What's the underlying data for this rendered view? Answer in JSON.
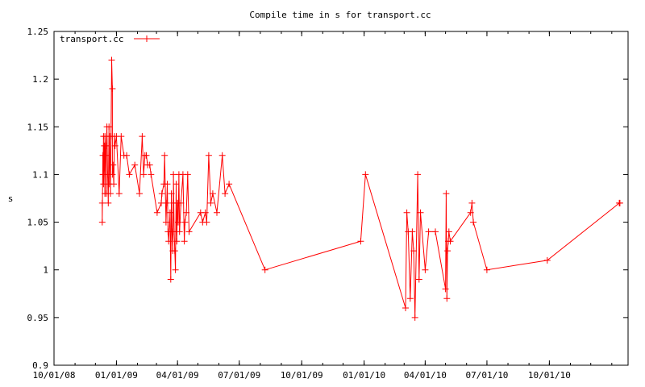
{
  "chart_data": {
    "type": "line",
    "title": "Compile time in s for transport.cc",
    "xlabel": "",
    "ylabel": "s",
    "ylim": [
      0.9,
      1.25
    ],
    "yticks": [
      0.9,
      0.95,
      1.0,
      1.05,
      1.1,
      1.15,
      1.2,
      1.25
    ],
    "ytick_labels": [
      "0.9",
      "0.95",
      "1",
      "1.05",
      "1.1",
      "1.15",
      "1.2",
      "1.25"
    ],
    "xlim": [
      "2008-10-01",
      "2011-01-25"
    ],
    "xticks": [
      "2008-10-01",
      "2009-01-01",
      "2009-04-01",
      "2009-07-01",
      "2009-10-01",
      "2010-01-01",
      "2010-04-01",
      "2010-07-01",
      "2010-10-01"
    ],
    "xtick_labels": [
      "10/01/08",
      "01/01/09",
      "04/01/09",
      "07/01/09",
      "10/01/09",
      "01/01/10",
      "04/01/10",
      "07/01/10",
      "10/01/10"
    ],
    "grid": false,
    "legend_position": "top-left",
    "colors": {
      "series": "#ff0000",
      "axes": "#000000",
      "background": "#ffffff"
    },
    "series": [
      {
        "name": "transport.cc",
        "x": [
          "2008-12-11",
          "2008-12-11",
          "2008-12-12",
          "2008-12-12",
          "2008-12-13",
          "2008-12-13",
          "2008-12-14",
          "2008-12-15",
          "2008-12-15",
          "2008-12-16",
          "2008-12-17",
          "2008-12-17",
          "2008-12-18",
          "2008-12-19",
          "2008-12-20",
          "2008-12-21",
          "2008-12-21",
          "2008-12-22",
          "2008-12-23",
          "2008-12-24",
          "2008-12-25",
          "2008-12-26",
          "2008-12-26",
          "2008-12-27",
          "2008-12-28",
          "2008-12-29",
          "2008-12-30",
          "2009-01-01",
          "2009-01-05",
          "2009-01-08",
          "2009-01-12",
          "2009-01-16",
          "2009-01-20",
          "2009-01-28",
          "2009-02-04",
          "2009-02-08",
          "2009-02-10",
          "2009-02-12",
          "2009-02-14",
          "2009-02-16",
          "2009-02-19",
          "2009-02-21",
          "2009-03-02",
          "2009-03-08",
          "2009-03-09",
          "2009-03-12",
          "2009-03-13",
          "2009-03-15",
          "2009-03-16",
          "2009-03-17",
          "2009-03-18",
          "2009-03-19",
          "2009-03-21",
          "2009-03-22",
          "2009-03-23",
          "2009-03-24",
          "2009-03-25",
          "2009-03-26",
          "2009-03-26",
          "2009-03-27",
          "2009-03-28",
          "2009-03-29",
          "2009-03-30",
          "2009-03-31",
          "2009-04-01",
          "2009-04-02",
          "2009-04-03",
          "2009-04-04",
          "2009-04-06",
          "2009-04-09",
          "2009-04-11",
          "2009-04-12",
          "2009-04-14",
          "2009-04-16",
          "2009-04-18",
          "2009-05-05",
          "2009-05-08",
          "2009-05-12",
          "2009-05-14",
          "2009-05-17",
          "2009-05-20",
          "2009-05-23",
          "2009-05-29",
          "2009-06-06",
          "2009-06-10",
          "2009-06-16",
          "2009-08-08",
          "2009-12-27",
          "2010-01-03",
          "2010-03-03",
          "2010-03-05",
          "2010-03-07",
          "2010-03-10",
          "2010-03-13",
          "2010-03-15",
          "2010-03-17",
          "2010-03-21",
          "2010-03-23",
          "2010-03-25",
          "2010-04-01",
          "2010-04-06",
          "2010-04-16",
          "2010-05-01",
          "2010-05-02",
          "2010-05-03",
          "2010-05-04",
          "2010-05-05",
          "2010-05-06",
          "2010-05-08",
          "2010-06-07",
          "2010-06-09",
          "2010-06-11",
          "2010-07-01",
          "2010-09-28",
          "2011-01-12",
          "2011-01-13"
        ],
        "y": [
          1.07,
          1.05,
          1.12,
          1.1,
          1.14,
          1.09,
          1.13,
          1.08,
          1.14,
          1.12,
          1.08,
          1.13,
          1.15,
          1.1,
          1.07,
          1.15,
          1.09,
          1.14,
          1.08,
          1.14,
          1.22,
          1.19,
          1.1,
          1.11,
          1.09,
          1.14,
          1.13,
          1.14,
          1.08,
          1.14,
          1.12,
          1.12,
          1.1,
          1.11,
          1.08,
          1.14,
          1.1,
          1.12,
          1.12,
          1.11,
          1.11,
          1.1,
          1.06,
          1.07,
          1.08,
          1.09,
          1.12,
          1.05,
          1.07,
          1.09,
          1.04,
          1.03,
          1.06,
          0.99,
          1.08,
          1.04,
          1.02,
          1.07,
          1.1,
          1.04,
          1.02,
          1.0,
          1.09,
          1.03,
          1.07,
          1.05,
          1.1,
          1.04,
          1.07,
          1.1,
          1.03,
          1.05,
          1.06,
          1.1,
          1.04,
          1.06,
          1.05,
          1.06,
          1.05,
          1.12,
          1.07,
          1.08,
          1.06,
          1.12,
          1.08,
          1.09,
          1.0,
          1.03,
          1.1,
          0.96,
          1.06,
          1.04,
          0.97,
          1.04,
          1.02,
          0.95,
          1.1,
          0.99,
          1.06,
          1.0,
          1.04,
          1.04,
          0.98,
          1.08,
          0.97,
          1.02,
          1.03,
          1.04,
          1.03,
          1.06,
          1.07,
          1.05,
          1.0,
          1.01,
          1.07,
          1.07
        ]
      }
    ]
  }
}
